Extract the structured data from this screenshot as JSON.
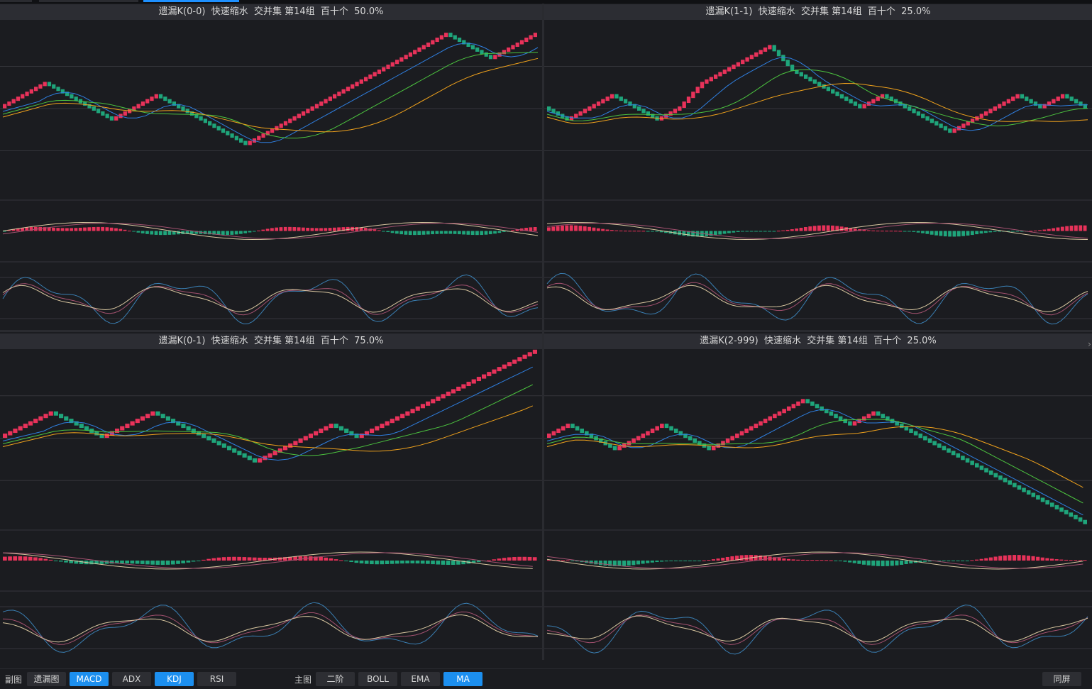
{
  "colors": {
    "up": "#e8325a",
    "down": "#1fa57b",
    "ma_blue": "#2f7fe0",
    "ma_green": "#4cc43f",
    "ma_orange": "#f0a21c",
    "line_k": "#3a7fb3",
    "line_d": "#a3516f",
    "line_j": "#d9c7a0"
  },
  "panels": [
    {
      "title": "遗漏K(0-0)  快速缩水  交并集 第14组  百十个  50.0%",
      "chart_data": {
        "type": "candlestick",
        "pattern": "stair-step alternating red/green bricks with moving averages, MACD and KDJ subcharts"
      }
    },
    {
      "title": "遗漏K(1-1)  快速缩水  交并集 第14组  百十个  25.0%",
      "chart_data": {
        "type": "candlestick",
        "pattern": "stair-step alternating red/green bricks with moving averages, MACD and KDJ subcharts"
      }
    },
    {
      "title": "遗漏K(0-1)  快速缩水  交并集 第14组  百十个  75.0%",
      "chart_data": {
        "type": "candlestick",
        "pattern": "stair-step alternating red/green bricks with moving averages, MACD and KDJ subcharts"
      }
    },
    {
      "title": "遗漏K(2-999)  快速缩水  交并集 第14组  百十个  25.0%",
      "chart_data": {
        "type": "candlestick",
        "pattern": "stair-step alternating red/green bricks with moving averages, MACD and KDJ subcharts"
      }
    }
  ],
  "toolbar": {
    "sub_label": "副图",
    "sub_buttons": [
      {
        "label": "遗漏图",
        "active": false
      },
      {
        "label": "MACD",
        "active": true
      },
      {
        "label": "ADX",
        "active": false
      },
      {
        "label": "KDJ",
        "active": true
      },
      {
        "label": "RSI",
        "active": false
      }
    ],
    "main_label": "主图",
    "main_buttons": [
      {
        "label": "二阶",
        "active": false
      },
      {
        "label": "BOLL",
        "active": false
      },
      {
        "label": "EMA",
        "active": false
      },
      {
        "label": "MA",
        "active": true
      }
    ],
    "same_screen": "同屏"
  }
}
